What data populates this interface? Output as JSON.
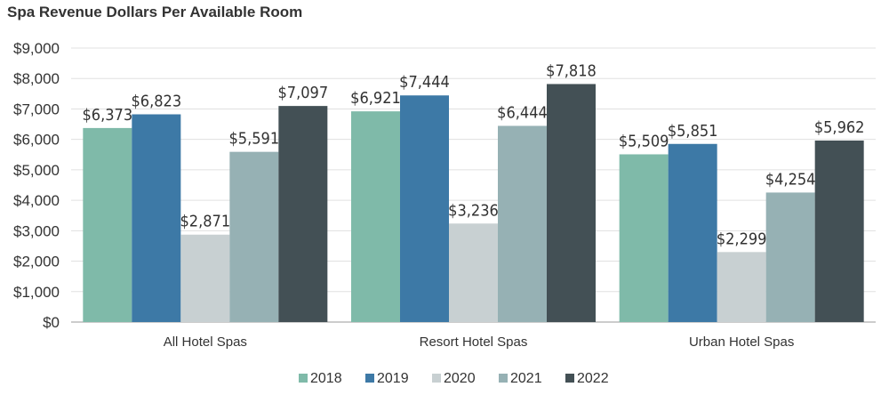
{
  "chart_data": {
    "type": "bar",
    "title": "Spa Revenue Dollars Per Available Room",
    "xlabel": "",
    "ylabel": "",
    "categories": [
      "All Hotel Spas",
      "Resort Hotel Spas",
      "Urban Hotel Spas"
    ],
    "series": [
      {
        "name": "2018",
        "color": "#7fbaa9",
        "values": [
          6373,
          6921,
          5509
        ]
      },
      {
        "name": "2019",
        "color": "#3d79a6",
        "values": [
          6823,
          7444,
          5851
        ]
      },
      {
        "name": "2020",
        "color": "#c8d0d2",
        "values": [
          2871,
          3236,
          2299
        ]
      },
      {
        "name": "2021",
        "color": "#96b1b4",
        "values": [
          5591,
          6444,
          4254
        ]
      },
      {
        "name": "2022",
        "color": "#435055",
        "values": [
          7097,
          7818,
          5962
        ]
      }
    ],
    "ylim": [
      0,
      9000
    ],
    "yticks": [
      "$0",
      "$1,000",
      "$2,000",
      "$3,000",
      "$4,000",
      "$5,000",
      "$6,000",
      "$7,000",
      "$8,000",
      "$9,000"
    ],
    "data_labels": [
      [
        "$6,373",
        "$6,921",
        "$5,509"
      ],
      [
        "$6,823",
        "$7,444",
        "$5,851"
      ],
      [
        "$2,871",
        "$3,236",
        "$2,299"
      ],
      [
        "$5,591",
        "$6,444",
        "$4,254"
      ],
      [
        "$7,097",
        "$7,818",
        "$5,962"
      ]
    ],
    "grid": true,
    "legend": "bottom"
  }
}
